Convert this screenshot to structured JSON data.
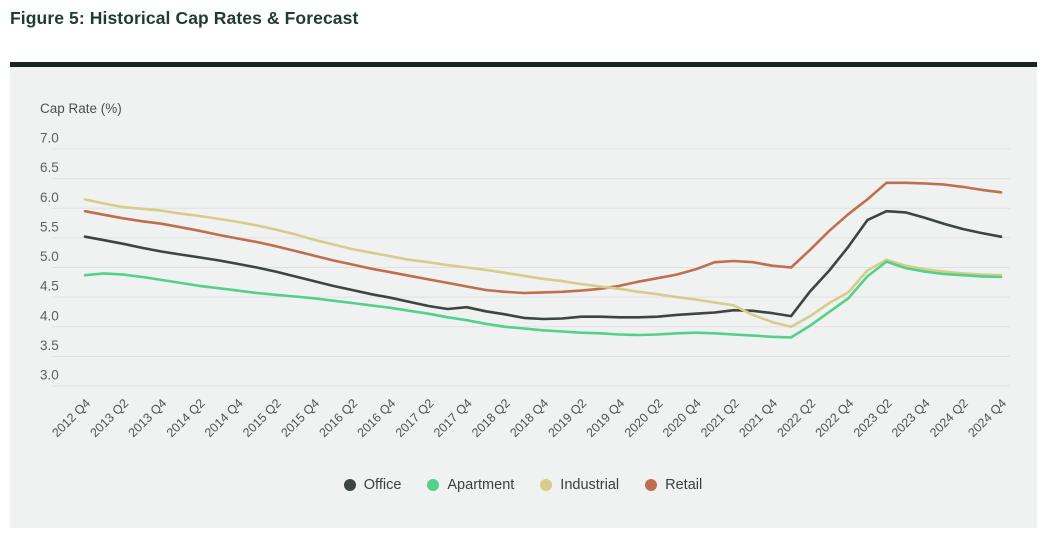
{
  "figure": {
    "title": "Figure 5: Historical Cap Rates & Forecast"
  },
  "colors": {
    "panel_background": "#f0f1f1",
    "top_rule": "#16251f",
    "title_text": "#1f3c33",
    "gridline": "#dfe1e0",
    "y_tick_text": "#5a615e",
    "x_tick_text": "#4d5451",
    "axis_title_text": "#4a524f",
    "legend_text": "#3b403d"
  },
  "chart_data": {
    "type": "line",
    "y_axis_title": "Cap Rate (%)",
    "ylim": [
      3.0,
      7.0
    ],
    "y_ticks": [
      7.0,
      6.5,
      6.0,
      5.5,
      5.0,
      4.5,
      4.0,
      3.5,
      3.0
    ],
    "y_tick_labels": [
      "7.0",
      "6.5",
      "6.0",
      "5.5",
      "5.0",
      "4.5",
      "4.0",
      "3.5",
      "3.0"
    ],
    "x_tick_labels": [
      "2012 Q4",
      "2013 Q2",
      "2013 Q4",
      "2014 Q2",
      "2014 Q4",
      "2015 Q2",
      "2015 Q4",
      "2016 Q2",
      "2016 Q4",
      "2017 Q2",
      "2017 Q4",
      "2018 Q2",
      "2018 Q4",
      "2019 Q2",
      "2019 Q4",
      "2020 Q2",
      "2020 Q4",
      "2021 Q2",
      "2021 Q4",
      "2022 Q2",
      "2022 Q4",
      "2023 Q2",
      "2023 Q4",
      "2024 Q2",
      "2024 Q4"
    ],
    "x_tick_every": 2,
    "points_frequency": "quarterly",
    "grid": "horizontal",
    "legend_position": "bottom-center",
    "series": [
      {
        "name": "Office",
        "color": "#3c453f",
        "values": [
          5.52,
          5.46,
          5.4,
          5.33,
          5.27,
          5.22,
          5.17,
          5.12,
          5.06,
          5.0,
          4.93,
          4.85,
          4.77,
          4.69,
          4.62,
          4.55,
          4.49,
          4.42,
          4.35,
          4.3,
          4.33,
          4.26,
          4.21,
          4.15,
          4.13,
          4.14,
          4.17,
          4.17,
          4.16,
          4.16,
          4.17,
          4.2,
          4.22,
          4.24,
          4.28,
          4.27,
          4.23,
          4.18,
          4.6,
          4.95,
          5.35,
          5.8,
          5.95,
          5.93,
          5.84,
          5.74,
          5.65,
          5.58,
          5.52
        ]
      },
      {
        "name": "Apartment",
        "color": "#53d18a",
        "values": [
          4.87,
          4.9,
          4.88,
          4.84,
          4.79,
          4.74,
          4.69,
          4.65,
          4.61,
          4.57,
          4.54,
          4.51,
          4.48,
          4.44,
          4.4,
          4.36,
          4.32,
          4.27,
          4.22,
          4.16,
          4.11,
          4.05,
          4.0,
          3.97,
          3.94,
          3.92,
          3.9,
          3.89,
          3.87,
          3.86,
          3.87,
          3.89,
          3.9,
          3.89,
          3.87,
          3.85,
          3.83,
          3.82,
          4.02,
          4.25,
          4.48,
          4.85,
          5.1,
          4.99,
          4.93,
          4.89,
          4.87,
          4.85,
          4.84
        ]
      },
      {
        "name": "Industrial",
        "color": "#d5cd8c",
        "values": [
          6.15,
          6.08,
          6.02,
          5.99,
          5.96,
          5.91,
          5.87,
          5.82,
          5.77,
          5.71,
          5.64,
          5.56,
          5.47,
          5.39,
          5.31,
          5.25,
          5.19,
          5.13,
          5.09,
          5.04,
          5.0,
          4.96,
          4.91,
          4.86,
          4.81,
          4.77,
          4.72,
          4.68,
          4.64,
          4.59,
          4.55,
          4.5,
          4.46,
          4.41,
          4.36,
          4.2,
          4.08,
          4.0,
          4.18,
          4.4,
          4.58,
          4.95,
          5.13,
          5.03,
          4.97,
          4.93,
          4.9,
          4.88,
          4.87
        ]
      },
      {
        "name": "Retail",
        "color": "#c06f4e",
        "values": [
          5.95,
          5.89,
          5.83,
          5.78,
          5.74,
          5.68,
          5.62,
          5.55,
          5.49,
          5.43,
          5.36,
          5.28,
          5.2,
          5.12,
          5.05,
          4.98,
          4.92,
          4.86,
          4.8,
          4.74,
          4.68,
          4.62,
          4.59,
          4.57,
          4.58,
          4.59,
          4.61,
          4.64,
          4.69,
          4.76,
          4.82,
          4.88,
          4.97,
          5.09,
          5.11,
          5.09,
          5.03,
          5.0,
          5.3,
          5.62,
          5.9,
          6.15,
          6.43,
          6.43,
          6.42,
          6.4,
          6.36,
          6.31,
          6.27
        ]
      }
    ]
  }
}
